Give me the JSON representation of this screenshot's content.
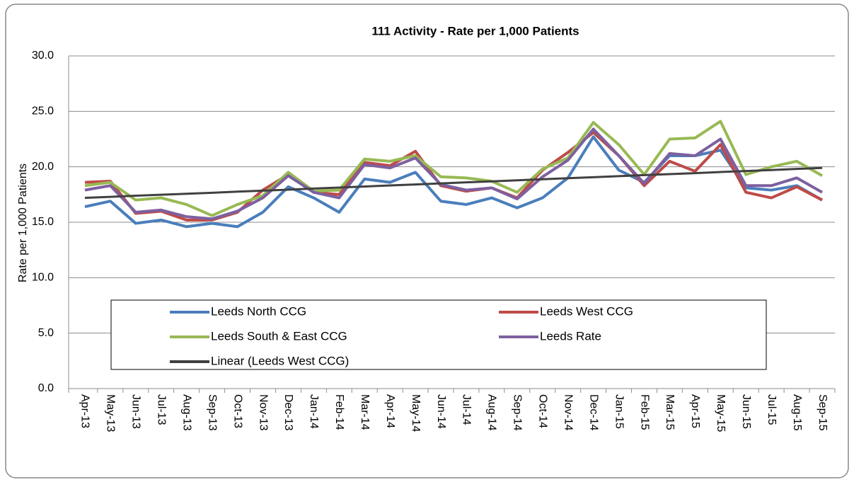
{
  "chart_data": {
    "type": "line",
    "title": "111 Activity - Rate per 1,000 Patients",
    "ylabel": "Rate per 1,000 Patients",
    "categories": [
      "Apr-13",
      "May-13",
      "Jun-13",
      "Jul-13",
      "Aug-13",
      "Sep-13",
      "Oct-13",
      "Nov-13",
      "Dec-13",
      "Jan-14",
      "Feb-14",
      "Mar-14",
      "Apr-14",
      "May-14",
      "Jun-14",
      "Jul-14",
      "Aug-14",
      "Sep-14",
      "Oct-14",
      "Nov-14",
      "Dec-14",
      "Jan-15",
      "Feb-15",
      "Mar-15",
      "Apr-15",
      "May-15",
      "Jun-15",
      "Jul-15",
      "Aug-15",
      "Sep-15"
    ],
    "series": [
      {
        "name": "Leeds North CCG",
        "color": "#4a7ebb",
        "values": [
          16.4,
          16.9,
          14.9,
          15.2,
          14.6,
          14.9,
          14.6,
          15.9,
          18.2,
          17.2,
          15.9,
          18.9,
          18.6,
          19.5,
          16.9,
          16.6,
          17.2,
          16.3,
          17.2,
          19.0,
          22.7,
          19.7,
          18.6,
          21.0,
          21.0,
          21.5,
          18.1,
          17.9,
          18.3,
          17.0
        ]
      },
      {
        "name": "Leeds West CCG",
        "color": "#be4b48",
        "values": [
          18.6,
          18.7,
          15.8,
          16.0,
          15.2,
          15.2,
          15.9,
          17.9,
          19.3,
          17.7,
          17.5,
          20.4,
          20.1,
          21.4,
          18.3,
          17.8,
          18.1,
          17.2,
          19.7,
          21.3,
          23.1,
          21.0,
          18.3,
          20.5,
          19.6,
          22.0,
          17.7,
          17.2,
          18.2,
          17.0
        ]
      },
      {
        "name": "Leeds South & East CCG",
        "color": "#98b954",
        "values": [
          18.3,
          18.6,
          17.0,
          17.2,
          16.6,
          15.6,
          16.6,
          17.4,
          19.5,
          17.8,
          17.9,
          20.7,
          20.5,
          21.0,
          19.1,
          19.0,
          18.7,
          17.7,
          19.8,
          20.8,
          24.0,
          22.0,
          19.3,
          22.5,
          22.6,
          24.1,
          19.3,
          20.0,
          20.5,
          19.2
        ]
      },
      {
        "name": "Leeds Rate",
        "color": "#7d60a0",
        "values": [
          17.9,
          18.3,
          15.9,
          16.1,
          15.5,
          15.3,
          16.0,
          17.2,
          19.2,
          17.7,
          17.2,
          20.2,
          19.9,
          20.8,
          18.4,
          17.9,
          18.1,
          17.1,
          19.1,
          20.6,
          23.4,
          21.0,
          18.5,
          21.2,
          21.0,
          22.5,
          18.3,
          18.3,
          19.0,
          17.7
        ]
      },
      {
        "name": "Linear (Leeds West CCG)",
        "color": "#404040",
        "values": [
          17.2,
          17.29,
          17.39,
          17.48,
          17.57,
          17.66,
          17.76,
          17.85,
          17.94,
          18.04,
          18.13,
          18.22,
          18.32,
          18.41,
          18.5,
          18.6,
          18.69,
          18.78,
          18.88,
          18.97,
          19.06,
          19.16,
          19.25,
          19.34,
          19.43,
          19.53,
          19.62,
          19.71,
          19.81,
          19.9
        ]
      }
    ],
    "ylim": [
      0,
      30
    ],
    "yticks": [
      {
        "value": 0,
        "label": "0.0"
      },
      {
        "value": 5,
        "label": "5.0"
      },
      {
        "value": 10,
        "label": "10.0"
      },
      {
        "value": 15,
        "label": "15.0"
      },
      {
        "value": 20,
        "label": "20.0"
      },
      {
        "value": 25,
        "label": "25.0"
      },
      {
        "value": 30,
        "label": "30.0"
      }
    ],
    "grid": true
  }
}
